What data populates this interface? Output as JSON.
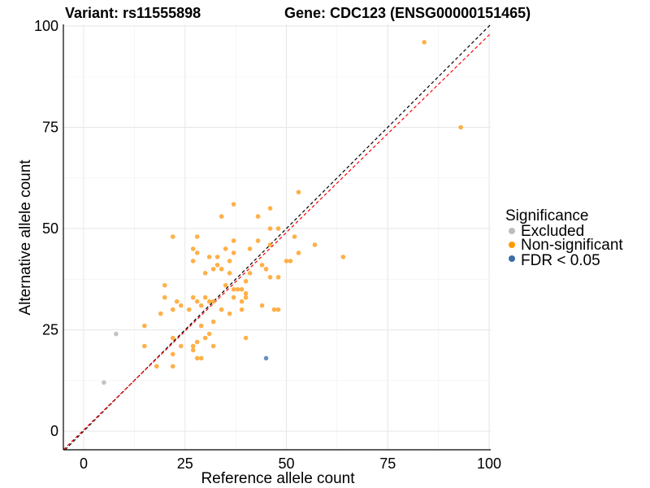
{
  "chart_data": {
    "type": "scatter",
    "title_left": "Variant: rs11555898",
    "title_right": "Gene: CDC123 (ENSG00000151465)",
    "xlabel": "Reference allele count",
    "ylabel": "Alternative allele count",
    "xlim": [
      -5,
      100.4
    ],
    "ylim": [
      -4.6,
      100.4
    ],
    "xticks": [
      0,
      25,
      50,
      75,
      100
    ],
    "yticks": [
      0,
      25,
      50,
      75,
      100
    ],
    "grid": true,
    "legend": {
      "title": "Significance",
      "placement": "right",
      "entries": [
        {
          "label": "Excluded",
          "color": "#bdbdbd"
        },
        {
          "label": "Non-significant",
          "color": "#ff9900"
        },
        {
          "label": "FDR < 0.05",
          "color": "#3b6ea8"
        }
      ]
    },
    "reference_lines": [
      {
        "name": "identity",
        "slope": 1,
        "intercept": 0,
        "color": "#000000",
        "style": "dashed"
      },
      {
        "name": "fit",
        "slope": 0.975,
        "intercept": 0.3,
        "color": "#ff0000",
        "style": "dashed"
      }
    ],
    "series": [
      {
        "name": "Excluded",
        "color": "#bdbdbd",
        "points": [
          [
            5,
            12
          ],
          [
            8,
            24
          ]
        ]
      },
      {
        "name": "Non-significant",
        "color": "#ffa733",
        "points": [
          [
            37,
            56
          ],
          [
            34,
            53
          ],
          [
            22,
            48
          ],
          [
            28,
            48
          ],
          [
            37,
            47
          ],
          [
            27,
            45
          ],
          [
            28,
            44
          ],
          [
            35,
            45
          ],
          [
            37,
            44
          ],
          [
            41,
            45
          ],
          [
            31,
            43
          ],
          [
            33,
            43
          ],
          [
            27,
            42
          ],
          [
            36,
            42
          ],
          [
            33,
            41
          ],
          [
            32,
            40
          ],
          [
            34,
            40
          ],
          [
            30,
            39
          ],
          [
            36,
            39
          ],
          [
            41,
            39
          ],
          [
            20,
            36
          ],
          [
            35,
            36
          ],
          [
            40,
            37
          ],
          [
            37,
            35
          ],
          [
            38,
            35
          ],
          [
            39,
            35
          ],
          [
            40,
            34
          ],
          [
            20,
            33
          ],
          [
            27,
            33
          ],
          [
            30,
            33
          ],
          [
            37,
            33
          ],
          [
            40,
            33
          ],
          [
            23,
            32
          ],
          [
            28,
            32
          ],
          [
            31,
            32
          ],
          [
            32,
            32
          ],
          [
            39,
            32
          ],
          [
            24,
            31
          ],
          [
            29,
            31
          ],
          [
            22,
            30
          ],
          [
            26,
            30
          ],
          [
            34,
            30
          ],
          [
            39,
            30
          ],
          [
            19,
            29
          ],
          [
            36,
            29
          ],
          [
            32,
            27
          ],
          [
            15,
            26
          ],
          [
            29,
            26
          ],
          [
            31,
            24
          ],
          [
            30,
            23
          ],
          [
            22,
            23
          ],
          [
            40,
            23
          ],
          [
            28,
            22
          ],
          [
            15,
            21
          ],
          [
            24,
            21
          ],
          [
            27,
            21
          ],
          [
            32,
            21
          ],
          [
            27,
            20
          ],
          [
            22,
            19
          ],
          [
            28,
            18
          ],
          [
            29,
            18
          ],
          [
            18,
            16
          ],
          [
            22,
            16
          ],
          [
            53,
            59
          ],
          [
            46,
            55
          ],
          [
            43,
            53
          ],
          [
            46,
            50
          ],
          [
            48,
            50
          ],
          [
            43,
            47
          ],
          [
            52,
            48
          ],
          [
            46,
            46
          ],
          [
            57,
            46
          ],
          [
            53,
            44
          ],
          [
            50,
            42
          ],
          [
            51,
            42
          ],
          [
            64,
            43
          ],
          [
            44,
            41
          ],
          [
            45,
            40
          ],
          [
            46,
            38
          ],
          [
            48,
            38
          ],
          [
            44,
            31
          ],
          [
            47,
            30
          ],
          [
            48,
            30
          ],
          [
            84,
            96
          ],
          [
            93,
            75
          ]
        ]
      },
      {
        "name": "FDR < 0.05",
        "color": "#5b84bd",
        "points": [
          [
            45,
            18
          ]
        ]
      }
    ]
  }
}
